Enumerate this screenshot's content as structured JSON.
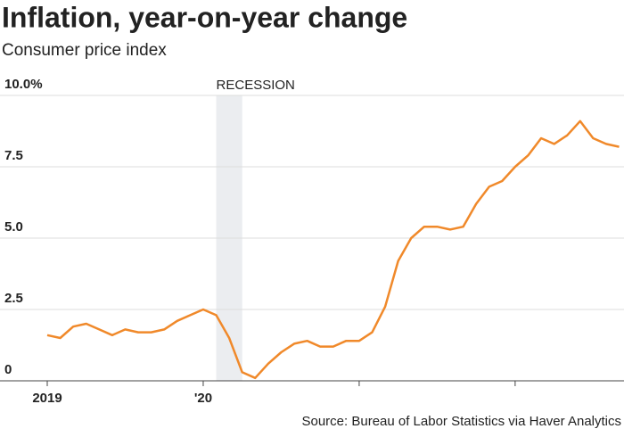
{
  "chart_data": {
    "type": "line",
    "title": "Inflation, year-on-year change",
    "subtitle": "Consumer price index",
    "source": "Source: Bureau of Labor Statistics via Haver Analytics",
    "categories": [
      "2019",
      null,
      null,
      null,
      null,
      null,
      null,
      null,
      null,
      null,
      null,
      null,
      "'20",
      null,
      null,
      null,
      null,
      null,
      null,
      null,
      null,
      null,
      null,
      null,
      null,
      null,
      null,
      null,
      null,
      null,
      null,
      null,
      null,
      null,
      null,
      null,
      null,
      null,
      null,
      null,
      null,
      null,
      null,
      null,
      null
    ],
    "xtick_categories": [
      0,
      12,
      24,
      36
    ],
    "series": [
      {
        "name": "Consumer price index",
        "color": "#f0892a",
        "values": [
          1.6,
          1.5,
          1.9,
          2.0,
          1.8,
          1.6,
          1.8,
          1.7,
          1.7,
          1.8,
          2.1,
          2.3,
          2.5,
          2.3,
          1.5,
          0.3,
          0.1,
          0.6,
          1.0,
          1.3,
          1.4,
          1.2,
          1.2,
          1.4,
          1.4,
          1.7,
          2.6,
          4.2,
          5.0,
          5.4,
          5.4,
          5.3,
          5.4,
          6.2,
          6.8,
          7.0,
          7.5,
          7.9,
          8.5,
          8.3,
          8.6,
          9.1,
          8.5,
          8.3,
          8.2
        ]
      }
    ],
    "shade": {
      "label": "RECESSION",
      "from": 13,
      "to": 15
    },
    "ylim": [
      0,
      10
    ],
    "yticks": [
      0,
      2.5,
      {
        "value": 5,
        "label": "5.0"
      },
      7.5,
      {
        "value": 10,
        "label": "10.0%"
      }
    ],
    "grid": true
  }
}
